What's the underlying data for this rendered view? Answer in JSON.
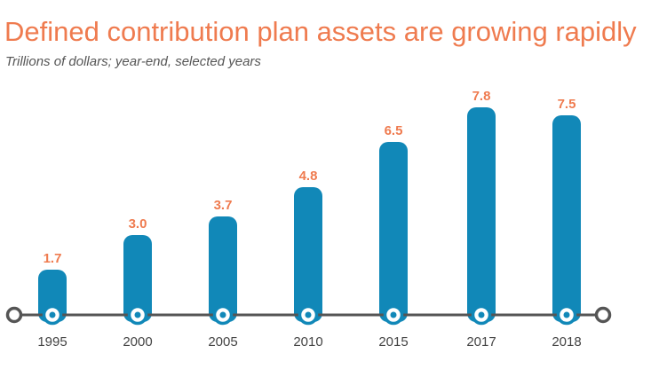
{
  "colors": {
    "title": "#ef7b4f",
    "bar": "#1188b8",
    "value_label": "#ef7b4f",
    "axis": "#555555",
    "tick_label": "#444444"
  },
  "chart_data": {
    "type": "bar",
    "title": "Defined contribution plan assets are growing rapidly",
    "subtitle": "Trillions of dollars; year-end, selected years",
    "xlabel": "",
    "ylabel": "",
    "categories": [
      "1995",
      "2000",
      "2005",
      "2010",
      "2015",
      "2017",
      "2018"
    ],
    "values": [
      1.7,
      3.0,
      3.7,
      4.8,
      6.5,
      7.8,
      7.5
    ],
    "value_labels": [
      "1.7",
      "3.0",
      "3.7",
      "4.8",
      "6.5",
      "7.8",
      "7.5"
    ],
    "ylim": [
      0,
      7.8
    ],
    "grid": false,
    "legend": "none"
  }
}
